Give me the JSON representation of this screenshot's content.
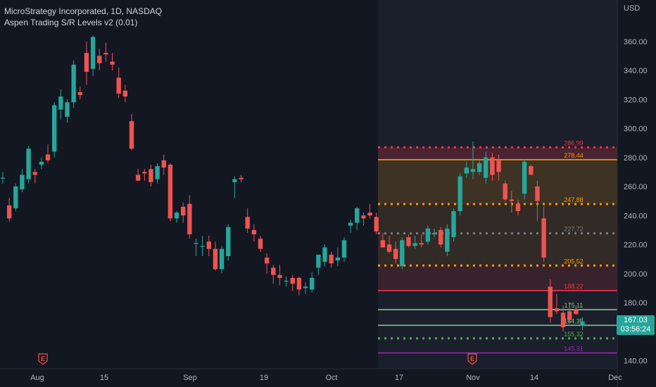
{
  "header": {
    "symbol_line": "MicroStrategy Incorporated, 1D, NASDAQ",
    "indicator_line": "Aspen Trading S/R Levels v2 (0.01)"
  },
  "price_axis": {
    "currency": "USD",
    "badge_price": "167.03",
    "badge_countdown": "03:56:24",
    "badge_color": "#26a69a"
  },
  "event_markers": [
    {
      "label": "E",
      "at": "Aug 8"
    },
    {
      "label": "E",
      "at": "Nov 1"
    }
  ],
  "colors": {
    "background": "#131722",
    "up": "#26a69a",
    "down": "#ef5350",
    "grid": "#1e222d",
    "axis_text": "#b2b5be"
  },
  "chart_data": {
    "type": "candlestick",
    "title": "MicroStrategy Incorporated, 1D, NASDAQ",
    "x_ticks": [
      "Aug",
      "15",
      "Sep",
      "19",
      "Oct",
      "17",
      "Nov",
      "14",
      "Dec"
    ],
    "y_ticks": [
      140,
      160,
      180,
      200,
      220,
      240,
      260,
      280,
      300,
      320,
      340,
      360
    ],
    "ylim": [
      136,
      376
    ],
    "grid": false,
    "candles": [
      {
        "o": 266,
        "h": 270,
        "l": 262,
        "c": 266
      },
      {
        "o": 247,
        "h": 252,
        "l": 236,
        "c": 238
      },
      {
        "o": 245,
        "h": 262,
        "l": 243,
        "c": 260
      },
      {
        "o": 258,
        "h": 272,
        "l": 256,
        "c": 268
      },
      {
        "o": 265,
        "h": 288,
        "l": 262,
        "c": 286
      },
      {
        "o": 270,
        "h": 272,
        "l": 262,
        "c": 268
      },
      {
        "o": 275,
        "h": 280,
        "l": 272,
        "c": 277
      },
      {
        "o": 282,
        "h": 289,
        "l": 276,
        "c": 278
      },
      {
        "o": 284,
        "h": 318,
        "l": 280,
        "c": 316
      },
      {
        "o": 313,
        "h": 327,
        "l": 306,
        "c": 322
      },
      {
        "o": 308,
        "h": 320,
        "l": 304,
        "c": 318
      },
      {
        "o": 318,
        "h": 347,
        "l": 314,
        "c": 344
      },
      {
        "o": 325,
        "h": 329,
        "l": 320,
        "c": 323
      },
      {
        "o": 352,
        "h": 360,
        "l": 330,
        "c": 339
      },
      {
        "o": 341,
        "h": 364,
        "l": 336,
        "c": 363
      },
      {
        "o": 350,
        "h": 355,
        "l": 340,
        "c": 345
      },
      {
        "o": 352,
        "h": 359,
        "l": 346,
        "c": 351
      },
      {
        "o": 346,
        "h": 352,
        "l": 340,
        "c": 344
      },
      {
        "o": 335,
        "h": 342,
        "l": 321,
        "c": 324
      },
      {
        "o": 326,
        "h": 330,
        "l": 318,
        "c": 322
      },
      {
        "o": 305,
        "h": 310,
        "l": 285,
        "c": 286
      },
      {
        "o": 268,
        "h": 272,
        "l": 264,
        "c": 264
      },
      {
        "o": 270,
        "h": 272,
        "l": 264,
        "c": 269
      },
      {
        "o": 272,
        "h": 275,
        "l": 260,
        "c": 263
      },
      {
        "o": 265,
        "h": 276,
        "l": 262,
        "c": 274
      },
      {
        "o": 278,
        "h": 282,
        "l": 268,
        "c": 273
      },
      {
        "o": 275,
        "h": 276,
        "l": 236,
        "c": 238
      },
      {
        "o": 238,
        "h": 243,
        "l": 235,
        "c": 242
      },
      {
        "o": 246,
        "h": 249,
        "l": 235,
        "c": 240
      },
      {
        "o": 248,
        "h": 254,
        "l": 224,
        "c": 227
      },
      {
        "o": 221,
        "h": 224,
        "l": 212,
        "c": 221
      },
      {
        "o": 219,
        "h": 226,
        "l": 212,
        "c": 219
      },
      {
        "o": 222,
        "h": 226,
        "l": 212,
        "c": 217
      },
      {
        "o": 217,
        "h": 222,
        "l": 202,
        "c": 203
      },
      {
        "o": 203,
        "h": 219,
        "l": 200,
        "c": 217
      },
      {
        "o": 212,
        "h": 234,
        "l": 209,
        "c": 232
      },
      {
        "o": 263,
        "h": 267,
        "l": 252,
        "c": 265
      },
      {
        "o": 266,
        "h": 268,
        "l": 263,
        "c": 265
      },
      {
        "o": 239,
        "h": 245,
        "l": 228,
        "c": 231
      },
      {
        "o": 230,
        "h": 234,
        "l": 222,
        "c": 227
      },
      {
        "o": 224,
        "h": 226,
        "l": 215,
        "c": 217
      },
      {
        "o": 211,
        "h": 214,
        "l": 200,
        "c": 207
      },
      {
        "o": 204,
        "h": 206,
        "l": 193,
        "c": 199
      },
      {
        "o": 199,
        "h": 206,
        "l": 192,
        "c": 197
      },
      {
        "o": 195,
        "h": 198,
        "l": 191,
        "c": 195
      },
      {
        "o": 197,
        "h": 199,
        "l": 188,
        "c": 193
      },
      {
        "o": 197,
        "h": 198,
        "l": 185,
        "c": 189
      },
      {
        "o": 190,
        "h": 194,
        "l": 186,
        "c": 191
      },
      {
        "o": 189,
        "h": 201,
        "l": 187,
        "c": 197
      },
      {
        "o": 204,
        "h": 213,
        "l": 199,
        "c": 213
      },
      {
        "o": 208,
        "h": 220,
        "l": 205,
        "c": 218
      },
      {
        "o": 213,
        "h": 215,
        "l": 204,
        "c": 207
      },
      {
        "o": 209,
        "h": 218,
        "l": 205,
        "c": 211
      },
      {
        "o": 211,
        "h": 225,
        "l": 208,
        "c": 223
      },
      {
        "o": 233,
        "h": 237,
        "l": 228,
        "c": 235
      },
      {
        "o": 235,
        "h": 246,
        "l": 230,
        "c": 245
      },
      {
        "o": 240,
        "h": 242,
        "l": 233,
        "c": 238
      },
      {
        "o": 242,
        "h": 248,
        "l": 238,
        "c": 240
      },
      {
        "o": 239,
        "h": 242,
        "l": 227,
        "c": 229
      },
      {
        "o": 223,
        "h": 228,
        "l": 218,
        "c": 218
      },
      {
        "o": 220,
        "h": 226,
        "l": 214,
        "c": 215
      },
      {
        "o": 217,
        "h": 222,
        "l": 207,
        "c": 210
      },
      {
        "o": 205,
        "h": 225,
        "l": 203,
        "c": 223
      },
      {
        "o": 225,
        "h": 227,
        "l": 218,
        "c": 219
      },
      {
        "o": 219,
        "h": 226,
        "l": 217,
        "c": 221
      },
      {
        "o": 221,
        "h": 227,
        "l": 218,
        "c": 220
      },
      {
        "o": 222,
        "h": 233,
        "l": 220,
        "c": 231
      },
      {
        "o": 227,
        "h": 231,
        "l": 225,
        "c": 228
      },
      {
        "o": 230,
        "h": 232,
        "l": 218,
        "c": 220
      },
      {
        "o": 215,
        "h": 234,
        "l": 212,
        "c": 231
      },
      {
        "o": 225,
        "h": 245,
        "l": 222,
        "c": 243
      },
      {
        "o": 243,
        "h": 269,
        "l": 240,
        "c": 267
      },
      {
        "o": 269,
        "h": 277,
        "l": 266,
        "c": 273
      },
      {
        "o": 270,
        "h": 291,
        "l": 265,
        "c": 272
      },
      {
        "o": 270,
        "h": 279,
        "l": 268,
        "c": 276
      },
      {
        "o": 266,
        "h": 284,
        "l": 262,
        "c": 280
      },
      {
        "o": 280,
        "h": 283,
        "l": 264,
        "c": 268
      },
      {
        "o": 278,
        "h": 282,
        "l": 264,
        "c": 270
      },
      {
        "o": 262,
        "h": 264,
        "l": 250,
        "c": 251
      },
      {
        "o": 251,
        "h": 257,
        "l": 242,
        "c": 250
      },
      {
        "o": 248,
        "h": 251,
        "l": 240,
        "c": 243
      },
      {
        "o": 255,
        "h": 279,
        "l": 251,
        "c": 277
      },
      {
        "o": 274,
        "h": 275,
        "l": 268,
        "c": 268
      },
      {
        "o": 260,
        "h": 264,
        "l": 236,
        "c": 250
      },
      {
        "o": 238,
        "h": 246,
        "l": 208,
        "c": 211
      },
      {
        "o": 191,
        "h": 196,
        "l": 166,
        "c": 170
      },
      {
        "o": 176,
        "h": 186,
        "l": 172,
        "c": 174
      },
      {
        "o": 173,
        "h": 178,
        "l": 160,
        "c": 163
      },
      {
        "o": 174,
        "h": 180,
        "l": 166,
        "c": 168
      },
      {
        "o": 175,
        "h": 178,
        "l": 172,
        "c": 172
      },
      {
        "o": 164,
        "h": 170,
        "l": 161,
        "c": 167
      }
    ],
    "levels": [
      {
        "label": "286.99",
        "value": 286.99,
        "color": "#f23645",
        "style": "dotted"
      },
      {
        "label": "278.44",
        "value": 278.44,
        "color": "#ff9800",
        "style": "solid"
      },
      {
        "label": "247.88",
        "value": 247.88,
        "color": "#ff9800",
        "style": "dotted"
      },
      {
        "label": "227.72",
        "value": 227.72,
        "color": "#787b86",
        "style": "dotted"
      },
      {
        "label": "205.52",
        "value": 205.52,
        "color": "#ff9800",
        "style": "dotted"
      },
      {
        "label": "188.22",
        "value": 188.22,
        "color": "#f23645",
        "style": "solid"
      },
      {
        "label": "175.11",
        "value": 175.11,
        "color": "#81c784",
        "style": "solid"
      },
      {
        "label": "164.35",
        "value": 164.35,
        "color": "#81c784",
        "style": "solid"
      },
      {
        "label": "155.32",
        "value": 155.32,
        "color": "#4caf50",
        "style": "dotted"
      },
      {
        "label": "145.31",
        "value": 145.31,
        "color": "#9c27b0",
        "style": "solid"
      }
    ]
  }
}
